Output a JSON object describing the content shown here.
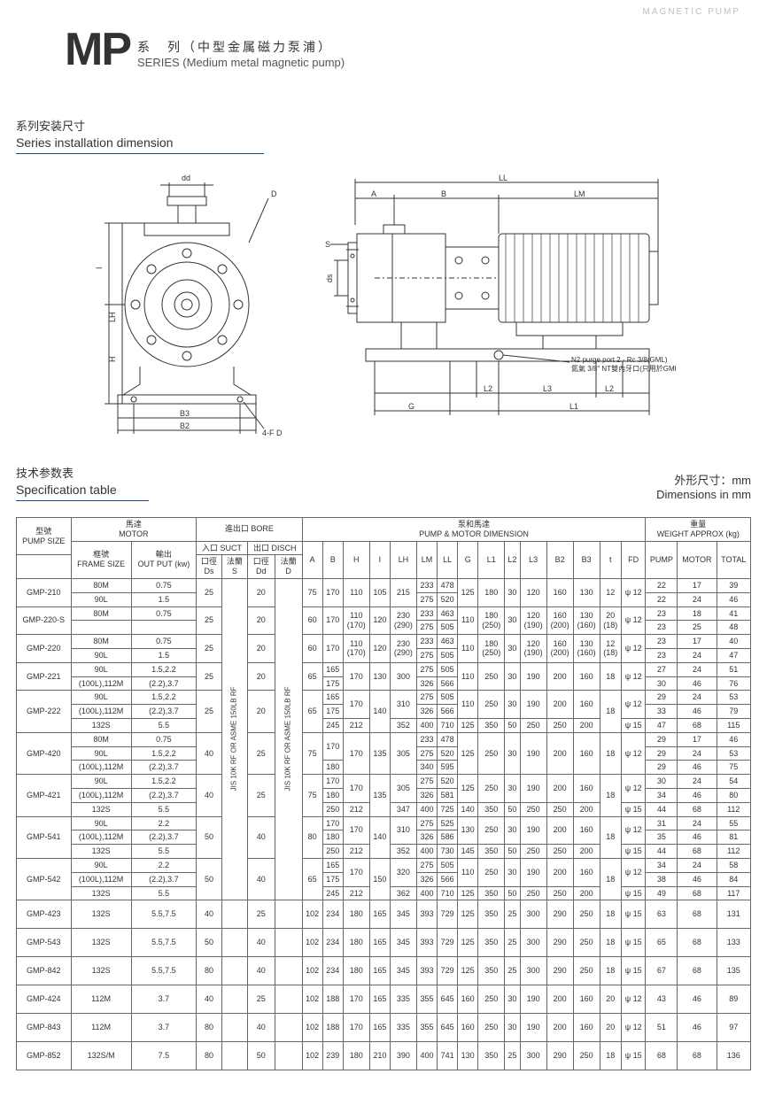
{
  "top_corner": "MAGNETIC PUMP",
  "title": {
    "mp": "MP",
    "cn": "系　列（中型金属磁力泵浦）",
    "en": "SERIES  (Medium metal magnetic pump)"
  },
  "section_install": {
    "cn": "系列安装尺寸",
    "en": "Series installation dimension"
  },
  "section_spec": {
    "cn": "技术参数表",
    "en": "Specification table"
  },
  "right_dim": {
    "cn": "外形尺寸：mm",
    "en": "Dimensions in mm"
  },
  "diagram_labels": {
    "dd": "dd",
    "D": "D",
    "I": "I",
    "LH": "LH",
    "H": "H",
    "B3": "B3",
    "B2": "B2",
    "fd": "4-F D",
    "LL": "LL",
    "A": "A",
    "B": "B",
    "LM": "LM",
    "S": "S",
    "ds": "ds",
    "L2a": "L2",
    "L3": "L3",
    "L2b": "L2",
    "G": "G",
    "L1": "L1",
    "purge_en": "N2 purge port 2 - Rc 3/8(GML)",
    "purge_cn": "氮氣 3/8\" NT雙內牙口(只用於GML)"
  },
  "headers": {
    "pump_size_cn": "型號",
    "pump_size_en": "PUMP SIZE",
    "motor_cn": "馬達",
    "motor_en": "MOTOR",
    "bore_cn": "進出口 BORE",
    "suct_cn": "入口 SUCT",
    "disch_cn": "出口 DISCH",
    "pmd_cn": "泵和馬達",
    "pmd_en": "PUMP & MOTOR DIMENSION",
    "weight_cn": "重量",
    "weight_en": "WEIGHT APPROX (kg)",
    "frame_cn": "框號",
    "frame_en": "FRAME SIZE",
    "out_cn": "輸出",
    "out_en": "OUT PUT (kw)",
    "col_Ds_cn": "口徑",
    "col_Ds": "Ds",
    "col_S_cn": "法蘭",
    "col_S": "S",
    "col_Dd_cn": "口徑",
    "col_Dd": "Dd",
    "col_D_cn": "法蘭",
    "col_D": "D",
    "cols": [
      "A",
      "B",
      "H",
      "I",
      "LH",
      "LM",
      "LL",
      "G",
      "L1",
      "L2",
      "L3",
      "B2",
      "B3",
      "t",
      "FD",
      "PUMP",
      "MOTOR",
      "TOTAL"
    ]
  },
  "flange_text": "JIS 10K RF OR ASME 150LB RF",
  "rows": [
    {
      "model": "GMP-210",
      "sub": [
        {
          "fs": "80M",
          "op": "0.75",
          "Ds": "25",
          "Dd": "20",
          "A": "75",
          "B": "170",
          "H": "110",
          "I": "105",
          "LH": "215",
          "LM": "233",
          "LL": "478",
          "G": "125",
          "L1": "180",
          "L2": "30",
          "L3": "120",
          "B2": "160",
          "B3": "130",
          "t": "12",
          "FD": "ψ 12",
          "p": "22",
          "m": "17",
          "tot": "39"
        },
        {
          "fs": "90L",
          "op": "1.5",
          "LM": "275",
          "LL": "520",
          "p": "22",
          "m": "24",
          "tot": "46"
        }
      ]
    },
    {
      "model": "GMP-220-S",
      "sub": [
        {
          "fs": "80M",
          "op": "0.75",
          "Ds": "25",
          "Dd": "20",
          "A": "60",
          "B": "170",
          "H": "110\n(170)",
          "I": "120",
          "LH": "230\n(290)",
          "LM": "233",
          "LL": "463",
          "G": "110",
          "L1": "180\n(250)",
          "L2": "30",
          "L3": "120\n(190)",
          "B2": "160\n(200)",
          "B3": "130\n(160)",
          "t": "20\n(18)",
          "FD": "ψ 12",
          "p": "23",
          "m": "18",
          "tot": "41"
        },
        {
          "_pair": true,
          "LM": "275",
          "LL": "505",
          "p": "23",
          "m": "25",
          "tot": "48"
        }
      ]
    },
    {
      "model": "GMP-220",
      "sub": [
        {
          "fs": "80M",
          "op": "0.75",
          "Ds": "25",
          "Dd": "20",
          "A": "60",
          "B": "170",
          "H": "110\n(170)",
          "I": "120",
          "LH": "230\n(290)",
          "LM": "233",
          "LL": "463",
          "G": "110",
          "L1": "180\n(250)",
          "L2": "30",
          "L3": "120\n(190)",
          "B2": "160\n(200)",
          "B3": "130\n(160)",
          "t": "12\n(18)",
          "FD": "ψ 12",
          "p": "23",
          "m": "17",
          "tot": "40"
        },
        {
          "fs": "90L",
          "op": "1.5",
          "LM": "275",
          "LL": "505",
          "p": "23",
          "m": "24",
          "tot": "47"
        }
      ]
    },
    {
      "model": "GMP-221",
      "sub": [
        {
          "fs": "90L",
          "op": "1.5,2.2",
          "Ds": "25",
          "Dd": "20",
          "A": "65",
          "B": "165",
          "H": "170",
          "I": "130",
          "LH": "300",
          "LM": "275",
          "LL": "505",
          "G": "110",
          "L1": "250",
          "L2": "30",
          "L3": "190",
          "B2": "200",
          "B3": "160",
          "t": "18",
          "FD": "ψ 12",
          "p": "27",
          "m": "24",
          "tot": "51"
        },
        {
          "fs": "(100L),112M",
          "op": "(2.2),3.7",
          "B": "175",
          "LM": "326",
          "LL": "566",
          "p": "30",
          "m": "46",
          "tot": "76"
        }
      ]
    },
    {
      "model": "GMP-222",
      "sub": [
        {
          "fs": "90L",
          "op": "1.5,2.2",
          "Ds": "25",
          "Dd": "20",
          "A": "65",
          "B": "165",
          "H": "170",
          "I": "140",
          "LH": "310",
          "LM": "275",
          "LL": "505",
          "G": "110",
          "L1": "250",
          "L2": "30",
          "L3": "190",
          "B2": "200",
          "B3": "160",
          "t": "18",
          "FD": "ψ 12",
          "p": "29",
          "m": "24",
          "tot": "53"
        },
        {
          "fs": "(100L),112M",
          "op": "(2.2),3.7",
          "B": "175",
          "LM": "326",
          "LL": "566",
          "p": "33",
          "m": "46",
          "tot": "79"
        },
        {
          "fs": "132S",
          "op": "5.5",
          "B": "245",
          "H": "212",
          "LH": "352",
          "LM": "400",
          "LL": "710",
          "G": "125",
          "L1": "350",
          "L2": "50",
          "L3": "250",
          "B2": "250",
          "B3": "200",
          "FD": "ψ 15",
          "p": "47",
          "m": "68",
          "tot": "115"
        }
      ]
    },
    {
      "model": "GMP-420",
      "sub": [
        {
          "fs": "80M",
          "op": "0.75",
          "Ds": "40",
          "Dd": "25",
          "A": "75",
          "B": "170",
          "H": "170",
          "I": "135",
          "LH": "305",
          "LM": "233",
          "LL": "478",
          "G": "125",
          "L1": "250",
          "L2": "30",
          "L3": "190",
          "B2": "200",
          "B3": "160",
          "t": "18",
          "FD": "ψ 12",
          "p": "29",
          "m": "17",
          "tot": "46"
        },
        {
          "fs": "90L",
          "op": "1.5,2.2",
          "LM": "275",
          "LL": "520",
          "p": "29",
          "m": "24",
          "tot": "53"
        },
        {
          "fs": "(100L),112M",
          "op": "(2.2),3.7",
          "B": "180",
          "LM": "340",
          "LL": "595",
          "p": "29",
          "m": "46",
          "tot": "75"
        }
      ]
    },
    {
      "model": "GMP-421",
      "sub": [
        {
          "fs": "90L",
          "op": "1.5,2.2",
          "Ds": "40",
          "Dd": "25",
          "A": "75",
          "B": "170",
          "H": "170",
          "I": "135",
          "LH": "305",
          "LM": "275",
          "LL": "520",
          "G": "125",
          "L1": "250",
          "L2": "30",
          "L3": "190",
          "B2": "200",
          "B3": "160",
          "t": "18",
          "FD": "ψ 12",
          "p": "30",
          "m": "24",
          "tot": "54"
        },
        {
          "fs": "(100L),112M",
          "op": "(2.2),3.7",
          "B": "180",
          "LM": "326",
          "LL": "581",
          "p": "34",
          "m": "46",
          "tot": "80"
        },
        {
          "fs": "132S",
          "op": "5.5",
          "B": "250",
          "H": "212",
          "LH": "347",
          "LM": "400",
          "LL": "725",
          "G": "140",
          "L1": "350",
          "L2": "50",
          "L3": "250",
          "B2": "250",
          "B3": "200",
          "FD": "ψ 15",
          "p": "44",
          "m": "68",
          "tot": "112"
        }
      ]
    },
    {
      "model": "GMP-541",
      "sub": [
        {
          "fs": "90L",
          "op": "2.2",
          "Ds": "50",
          "Dd": "40",
          "A": "80",
          "B": "170",
          "H": "170",
          "I": "140",
          "LH": "310",
          "LM": "275",
          "LL": "525",
          "G": "130",
          "L1": "250",
          "L2": "30",
          "L3": "190",
          "B2": "200",
          "B3": "160",
          "t": "18",
          "FD": "ψ 12",
          "p": "31",
          "m": "24",
          "tot": "55"
        },
        {
          "fs": "(100L),112M",
          "op": "(2.2),3.7",
          "B": "180",
          "LM": "326",
          "LL": "586",
          "p": "35",
          "m": "46",
          "tot": "81"
        },
        {
          "fs": "132S",
          "op": "5.5",
          "B": "250",
          "H": "212",
          "LH": "352",
          "LM": "400",
          "LL": "730",
          "G": "145",
          "L1": "350",
          "L2": "50",
          "L3": "250",
          "B2": "250",
          "B3": "200",
          "FD": "ψ 15",
          "p": "44",
          "m": "68",
          "tot": "112"
        }
      ]
    },
    {
      "model": "GMP-542",
      "sub": [
        {
          "fs": "90L",
          "op": "2.2",
          "Ds": "50",
          "Dd": "40",
          "A": "65",
          "B": "165",
          "H": "170",
          "I": "150",
          "LH": "320",
          "LM": "275",
          "LL": "505",
          "G": "110",
          "L1": "250",
          "L2": "30",
          "L3": "190",
          "B2": "200",
          "B3": "160",
          "t": "18",
          "FD": "ψ 12",
          "p": "34",
          "m": "24",
          "tot": "58"
        },
        {
          "fs": "(100L),112M",
          "op": "(2.2),3.7",
          "B": "175",
          "LM": "326",
          "LL": "566",
          "p": "38",
          "m": "46",
          "tot": "84"
        },
        {
          "fs": "132S",
          "op": "5.5",
          "B": "245",
          "H": "212",
          "LH": "362",
          "LM": "400",
          "LL": "710",
          "G": "125",
          "L1": "350",
          "L2": "50",
          "L3": "250",
          "B2": "250",
          "B3": "200",
          "FD": "ψ 15",
          "p": "49",
          "m": "68",
          "tot": "117"
        }
      ]
    },
    {
      "model": "GMP-423",
      "single": true,
      "sub": [
        {
          "fs": "132S",
          "op": "5.5,7.5",
          "Ds": "40",
          "Dd": "25",
          "A": "102",
          "B": "234",
          "H": "180",
          "I": "165",
          "LH": "345",
          "LM": "393",
          "LL": "729",
          "G": "125",
          "L1": "350",
          "L2": "25",
          "L3": "300",
          "B2": "290",
          "B3": "250",
          "t": "18",
          "FD": "ψ 15",
          "p": "63",
          "m": "68",
          "tot": "131"
        }
      ]
    },
    {
      "model": "GMP-543",
      "single": true,
      "sub": [
        {
          "fs": "132S",
          "op": "5.5,7.5",
          "Ds": "50",
          "Dd": "40",
          "A": "102",
          "B": "234",
          "H": "180",
          "I": "165",
          "LH": "345",
          "LM": "393",
          "LL": "729",
          "G": "125",
          "L1": "350",
          "L2": "25",
          "L3": "300",
          "B2": "290",
          "B3": "250",
          "t": "18",
          "FD": "ψ 15",
          "p": "65",
          "m": "68",
          "tot": "133"
        }
      ]
    },
    {
      "model": "GMP-842",
      "single": true,
      "sub": [
        {
          "fs": "132S",
          "op": "5.5,7.5",
          "Ds": "80",
          "Dd": "40",
          "A": "102",
          "B": "234",
          "H": "180",
          "I": "165",
          "LH": "345",
          "LM": "393",
          "LL": "729",
          "G": "125",
          "L1": "350",
          "L2": "25",
          "L3": "300",
          "B2": "290",
          "B3": "250",
          "t": "18",
          "FD": "ψ 15",
          "p": "67",
          "m": "68",
          "tot": "135"
        }
      ]
    },
    {
      "model": "GMP-424",
      "single": true,
      "sub": [
        {
          "fs": "112M",
          "op": "3.7",
          "Ds": "40",
          "Dd": "25",
          "A": "102",
          "B": "188",
          "H": "170",
          "I": "165",
          "LH": "335",
          "LM": "355",
          "LL": "645",
          "G": "160",
          "L1": "250",
          "L2": "30",
          "L3": "190",
          "B2": "200",
          "B3": "160",
          "t": "20",
          "FD": "ψ 12",
          "p": "43",
          "m": "46",
          "tot": "89"
        }
      ]
    },
    {
      "model": "GMP-843",
      "single": true,
      "sub": [
        {
          "fs": "112M",
          "op": "3.7",
          "Ds": "80",
          "Dd": "40",
          "A": "102",
          "B": "188",
          "H": "170",
          "I": "165",
          "LH": "335",
          "LM": "355",
          "LL": "645",
          "G": "160",
          "L1": "250",
          "L2": "30",
          "L3": "190",
          "B2": "200",
          "B3": "160",
          "t": "20",
          "FD": "ψ 12",
          "p": "51",
          "m": "46",
          "tot": "97"
        }
      ]
    },
    {
      "model": "GMP-852",
      "single": true,
      "sub": [
        {
          "fs": "132S/M",
          "op": "7.5",
          "Ds": "80",
          "Dd": "50",
          "A": "102",
          "B": "239",
          "H": "180",
          "I": "210",
          "LH": "390",
          "LM": "400",
          "LL": "741",
          "G": "130",
          "L1": "350",
          "L2": "25",
          "L3": "300",
          "B2": "290",
          "B3": "250",
          "t": "18",
          "FD": "ψ 15",
          "p": "68",
          "m": "68",
          "tot": "136"
        }
      ]
    }
  ]
}
